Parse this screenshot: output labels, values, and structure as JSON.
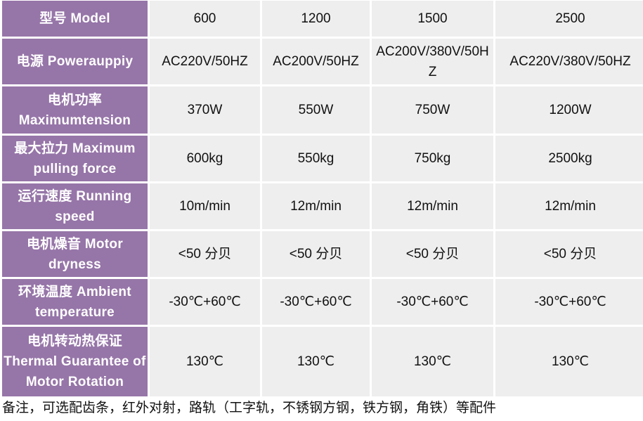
{
  "table": {
    "header_color": "#9675a8",
    "cell_color": "#eeeeee",
    "rows": [
      {
        "label": "型号 Model",
        "values": [
          "600",
          "1200",
          "1500",
          "2500"
        ]
      },
      {
        "label": "电源 Powerauppiy",
        "values": [
          "AC220V/50HZ",
          "AC200V/50HZ",
          "AC200V/380V/50HZ",
          "AC220V/380V/50HZ"
        ]
      },
      {
        "label": "电机功率 Maximumtension",
        "values": [
          "370W",
          "550W",
          "750W",
          "1200W"
        ]
      },
      {
        "label": "最大拉力 Maximum pulling force",
        "values": [
          "600kg",
          "550kg",
          "750kg",
          "2500kg"
        ]
      },
      {
        "label": "运行速度 Running speed",
        "values": [
          "10m/min",
          "12m/min",
          "12m/min",
          "12m/min"
        ]
      },
      {
        "label": "电机燥音 Motor dryness",
        "values": [
          "<50 分贝",
          "<50 分贝",
          "<50 分贝",
          "<50 分贝"
        ]
      },
      {
        "label": "环境温度 Ambient temperature",
        "values": [
          "-30℃+60℃",
          "-30℃+60℃",
          "-30℃+60℃",
          "-30℃+60℃"
        ]
      },
      {
        "label": "电机转动热保证 Thermal Guarantee of Motor Rotation",
        "values": [
          "130℃",
          "130℃",
          "130℃",
          "130℃"
        ]
      }
    ]
  },
  "note": "备注，可选配齿条，红外对射，路轨（工字轨，不锈钢方钢，铁方钢，角铁）等配件"
}
